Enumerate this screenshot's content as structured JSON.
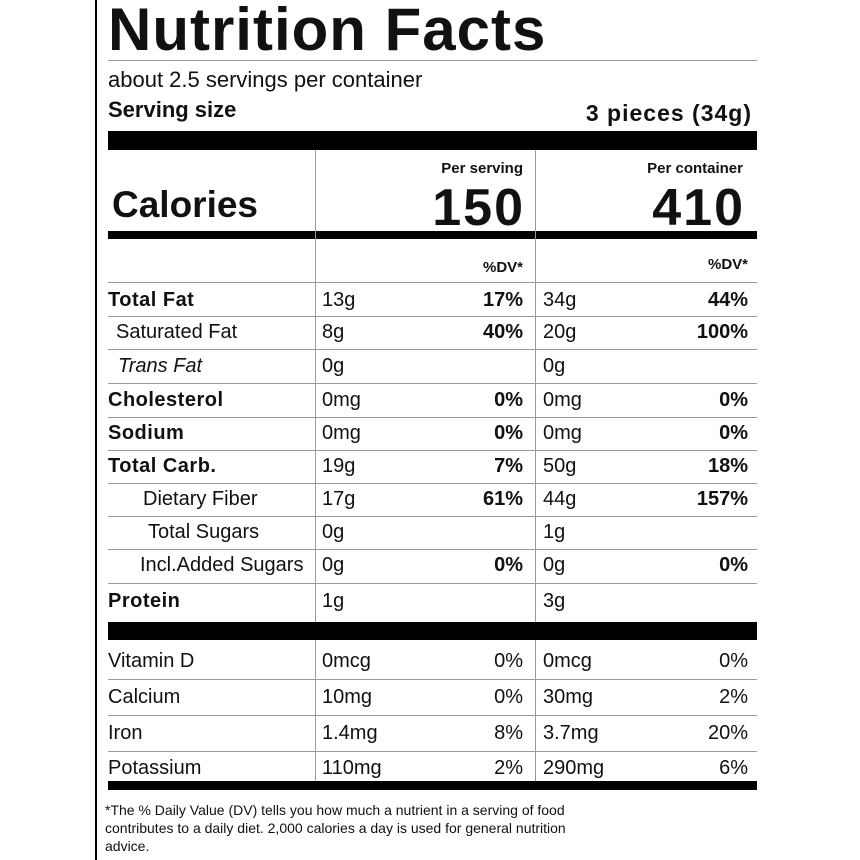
{
  "header": {
    "title": "Nutrition Facts",
    "servings": "about 2.5 servings per container",
    "serving_size_label": "Serving size",
    "serving_size": "3 pieces (34g)"
  },
  "calories": {
    "label": "Calories",
    "per_serving_label": "Per serving",
    "per_container_label": "Per container",
    "per_serving": "150",
    "per_container": "410"
  },
  "dv_header": [
    "%DV*",
    "%DV*"
  ],
  "nutrients": [
    [
      "Total Fat",
      "13g",
      "17%",
      "34g",
      "44%"
    ],
    [
      "Saturated Fat",
      "8g",
      "40%",
      "20g",
      "100%"
    ],
    [
      "Trans Fat",
      "0g",
      null,
      "0g",
      null
    ],
    [
      "Cholesterol",
      "0mg",
      "0%",
      "0mg",
      "0%"
    ],
    [
      "Sodium",
      "0mg",
      "0%",
      "0mg",
      "0%"
    ],
    [
      "Total Carb.",
      "19g",
      "7%",
      "50g",
      "18%"
    ],
    [
      "Dietary Fiber",
      "17g",
      "61%",
      "44g",
      "157%"
    ],
    [
      "Total Sugars",
      "0g",
      null,
      "1g",
      null
    ],
    [
      "Incl.Added Sugars",
      "0g",
      "0%",
      "0g",
      "0%"
    ],
    [
      "Protein",
      "1g",
      null,
      "3g",
      null
    ]
  ],
  "vitamins": [
    [
      "Vitamin D",
      "0mcg",
      "0%",
      "0mcg",
      "0%"
    ],
    [
      "Calcium",
      "10mg",
      "0%",
      "30mg",
      "2%"
    ],
    [
      "Iron",
      "1.4mg",
      "8%",
      "3.7mg",
      "20%"
    ],
    [
      "Potassium",
      "110mg",
      "2%",
      "290mg",
      "6%"
    ]
  ],
  "footnote": "*The % Daily Value (DV) tells you how much a nutrient in a serving of food contributes to a daily diet. 2,000 calories a day is used for general nutrition advice."
}
